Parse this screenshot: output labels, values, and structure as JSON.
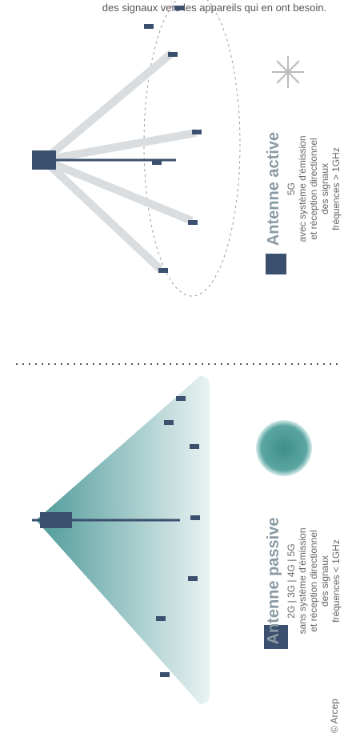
{
  "header": {
    "text": "des signaux vers les appareils qui en ont besoin."
  },
  "passive": {
    "title": "Antenne passive",
    "generations": "2G | 3G | 4G | 5G",
    "description": [
      "sans système d'émission",
      "et réception directionnel",
      "des signaux"
    ],
    "frequency": "fréquences < 1GHz"
  },
  "active": {
    "title": "Antenne active",
    "generations": "5G",
    "description": [
      "avec système d'émission",
      "et réception directionnel",
      "des signaux"
    ],
    "frequency": "fréquences > 1GHz"
  },
  "credit": "© Arcep"
}
